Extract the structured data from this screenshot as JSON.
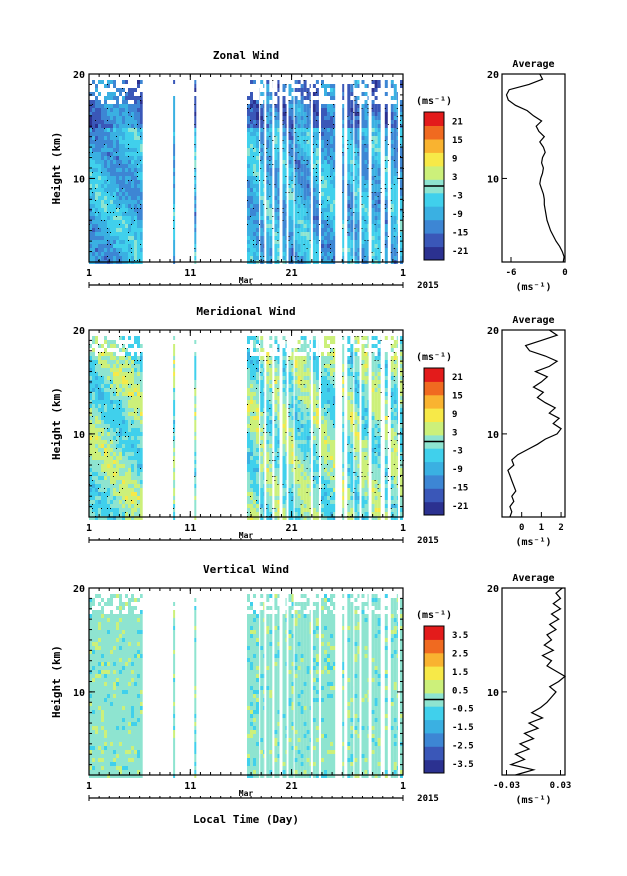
{
  "chart_data": [
    {
      "type": "heatmap",
      "title": "Zonal Wind",
      "ylabel": "Height (km)",
      "yticks": [
        "10",
        "20"
      ],
      "xticks": [
        "1",
        "11",
        "21",
        "1"
      ],
      "ylim": [
        2,
        20
      ],
      "xlim": [
        1,
        32
      ],
      "month_label": "Mar",
      "year_label": "2015",
      "colorbar": {
        "unit": "(ms⁻¹)",
        "ticks": [
          "21",
          "15",
          "9",
          "3",
          "-3",
          "-9",
          "-15",
          "-21"
        ],
        "range": [
          -24,
          24
        ]
      },
      "field_bias": -9,
      "average": {
        "title": "Average",
        "unit": "(ms⁻¹)",
        "xticks": [
          "-6",
          "0"
        ],
        "xlim": [
          -7,
          0
        ],
        "profile": [
          [
            -0.2,
            2
          ],
          [
            -0.1,
            2.5
          ],
          [
            -0.3,
            3
          ],
          [
            -0.6,
            3.5
          ],
          [
            -1.0,
            4
          ],
          [
            -1.3,
            4.5
          ],
          [
            -1.6,
            5
          ],
          [
            -1.8,
            5.5
          ],
          [
            -2.0,
            6
          ],
          [
            -2.1,
            6.5
          ],
          [
            -2.2,
            7
          ],
          [
            -2.3,
            7.5
          ],
          [
            -2.3,
            8
          ],
          [
            -2.4,
            8.5
          ],
          [
            -2.6,
            9
          ],
          [
            -2.8,
            9.5
          ],
          [
            -2.7,
            10
          ],
          [
            -2.5,
            10.5
          ],
          [
            -2.4,
            11
          ],
          [
            -2.6,
            11.5
          ],
          [
            -2.5,
            12
          ],
          [
            -2.2,
            12.5
          ],
          [
            -2.4,
            13
          ],
          [
            -2.8,
            13.5
          ],
          [
            -2.3,
            14
          ],
          [
            -2.9,
            14.5
          ],
          [
            -3.2,
            15
          ],
          [
            -2.6,
            15.5
          ],
          [
            -3.5,
            16
          ],
          [
            -4.2,
            16.5
          ],
          [
            -5.5,
            17
          ],
          [
            -6.3,
            17.5
          ],
          [
            -6.5,
            18
          ],
          [
            -6.2,
            18.5
          ],
          [
            -4.0,
            19
          ],
          [
            -2.5,
            19.5
          ],
          [
            -2.8,
            20
          ]
        ]
      }
    },
    {
      "type": "heatmap",
      "title": "Meridional Wind",
      "ylabel": "Height (km)",
      "yticks": [
        "10",
        "20"
      ],
      "xticks": [
        "1",
        "11",
        "21",
        "1"
      ],
      "ylim": [
        2,
        20
      ],
      "xlim": [
        1,
        32
      ],
      "month_label": "Mar",
      "year_label": "2015",
      "colorbar": {
        "unit": "(ms⁻¹)",
        "ticks": [
          "21",
          "15",
          "9",
          "3",
          "-3",
          "-9",
          "-15",
          "-21"
        ],
        "range": [
          -24,
          24
        ]
      },
      "field_bias": 0,
      "average": {
        "title": "Average",
        "unit": "(ms⁻¹)",
        "xticks": [
          "0",
          "1",
          "2"
        ],
        "xlim": [
          -1,
          2.2
        ],
        "profile": [
          [
            -0.6,
            2
          ],
          [
            -0.5,
            2.5
          ],
          [
            -0.6,
            3
          ],
          [
            -0.4,
            3.5
          ],
          [
            -0.5,
            4
          ],
          [
            -0.3,
            4.5
          ],
          [
            -0.4,
            5
          ],
          [
            -0.5,
            5.5
          ],
          [
            -0.6,
            6
          ],
          [
            -0.7,
            6.5
          ],
          [
            -0.4,
            7
          ],
          [
            -0.5,
            7.5
          ],
          [
            -0.2,
            8
          ],
          [
            0.3,
            8.5
          ],
          [
            0.8,
            9
          ],
          [
            1.2,
            9.5
          ],
          [
            1.8,
            10
          ],
          [
            2.0,
            10.5
          ],
          [
            1.6,
            11
          ],
          [
            1.9,
            11.5
          ],
          [
            1.4,
            12
          ],
          [
            1.7,
            12.5
          ],
          [
            1.2,
            13
          ],
          [
            0.8,
            13.5
          ],
          [
            1.1,
            14
          ],
          [
            0.6,
            14.5
          ],
          [
            1.0,
            15
          ],
          [
            1.3,
            15.5
          ],
          [
            0.7,
            16
          ],
          [
            1.4,
            16.5
          ],
          [
            1.8,
            17
          ],
          [
            1.2,
            17.5
          ],
          [
            0.4,
            18
          ],
          [
            0.2,
            18.5
          ],
          [
            1.0,
            19
          ],
          [
            1.8,
            19.5
          ],
          [
            1.4,
            20
          ]
        ]
      }
    },
    {
      "type": "heatmap",
      "title": "Vertical Wind",
      "ylabel": "Height (km)",
      "xlabel": "Local Time (Day)",
      "yticks": [
        "10",
        "20"
      ],
      "xticks": [
        "1",
        "11",
        "21",
        "1"
      ],
      "ylim": [
        2,
        20
      ],
      "xlim": [
        1,
        32
      ],
      "month_label": "Mar",
      "year_label": "2015",
      "colorbar": {
        "unit": "(ms⁻¹)",
        "ticks": [
          "3.5",
          "2.5",
          "1.5",
          "0.5",
          "-0.5",
          "-1.5",
          "-2.5",
          "-3.5"
        ],
        "range": [
          -4,
          4
        ]
      },
      "field_bias": 0,
      "average": {
        "title": "Average",
        "unit": "(ms⁻¹)",
        "xticks": [
          "-0.03",
          "0.03"
        ],
        "xlim": [
          -0.035,
          0.035
        ],
        "profile": [
          [
            -0.02,
            2
          ],
          [
            0.0,
            2.5
          ],
          [
            -0.025,
            3
          ],
          [
            -0.01,
            3.5
          ],
          [
            -0.02,
            4
          ],
          [
            -0.005,
            4.5
          ],
          [
            -0.015,
            5
          ],
          [
            0.0,
            5.5
          ],
          [
            -0.01,
            6
          ],
          [
            0.005,
            6.5
          ],
          [
            -0.005,
            7
          ],
          [
            0.01,
            7.5
          ],
          [
            -0.002,
            8
          ],
          [
            0.008,
            8.5
          ],
          [
            0.015,
            9
          ],
          [
            0.02,
            9.5
          ],
          [
            0.025,
            10
          ],
          [
            0.018,
            10.5
          ],
          [
            0.028,
            11
          ],
          [
            0.035,
            11.5
          ],
          [
            0.025,
            12
          ],
          [
            0.015,
            12.5
          ],
          [
            0.02,
            13
          ],
          [
            0.01,
            13.5
          ],
          [
            0.022,
            14
          ],
          [
            0.012,
            14.5
          ],
          [
            0.02,
            15
          ],
          [
            0.015,
            15.5
          ],
          [
            0.025,
            16
          ],
          [
            0.018,
            16.5
          ],
          [
            0.028,
            17
          ],
          [
            0.02,
            17.5
          ],
          [
            0.03,
            18
          ],
          [
            0.022,
            18.5
          ],
          [
            0.03,
            19
          ],
          [
            0.025,
            19.5
          ],
          [
            0.032,
            20
          ]
        ]
      }
    }
  ],
  "data_days": [
    [
      1,
      6.3
    ],
    [
      9.3,
      9.5
    ],
    [
      11.4,
      11.6
    ],
    [
      16.6,
      17.8
    ],
    [
      17.9,
      18.3
    ],
    [
      18.5,
      19.1
    ],
    [
      19.3,
      19.8
    ],
    [
      20.1,
      20.5
    ],
    [
      20.7,
      21.2
    ],
    [
      21.3,
      22.9
    ],
    [
      23.1,
      23.7
    ],
    [
      23.9,
      25.3
    ],
    [
      26.0,
      26.2
    ],
    [
      26.5,
      27.1
    ],
    [
      27.2,
      27.7
    ],
    [
      27.9,
      28.6
    ],
    [
      28.9,
      29.8
    ],
    [
      30.2,
      30.5
    ],
    [
      30.8,
      31.5
    ],
    [
      31.7,
      32.0
    ]
  ],
  "colors": {
    "palette": [
      "#2b3190",
      "#3a57b8",
      "#3d86d4",
      "#3ab0e2",
      "#40d0ec",
      "#8ee4d0",
      "#ccf07a",
      "#f7e948",
      "#f9b330",
      "#f06a20",
      "#e31b1b"
    ],
    "contour": "#000000",
    "zero_line": "#000000"
  }
}
